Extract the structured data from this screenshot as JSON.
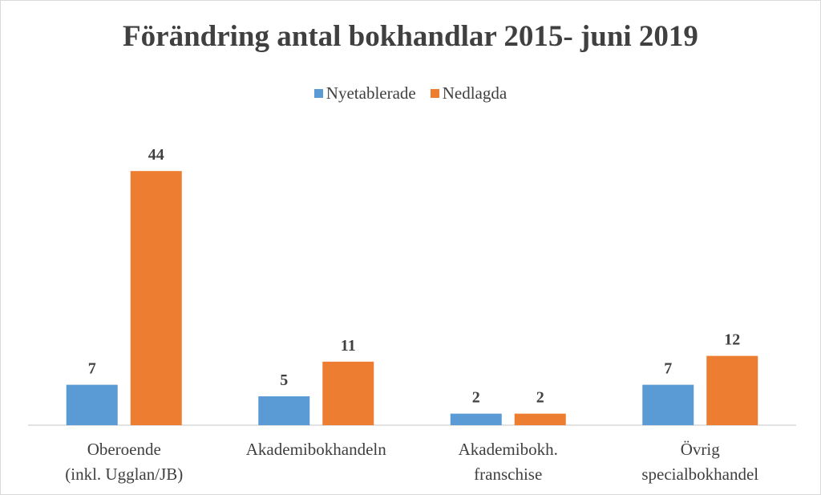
{
  "chart_data": {
    "type": "bar",
    "title": "Förändring antal bokhandlar 2015- juni 2019",
    "categories": [
      [
        "Oberoende",
        "(inkl. Ugglan/JB)"
      ],
      [
        "Akademibokhandeln"
      ],
      [
        "Akademibokh.",
        "franschise"
      ],
      [
        "Övrig",
        "specialbokhandel"
      ]
    ],
    "series": [
      {
        "name": "Nyetablerade",
        "color": "#5b9bd5",
        "values": [
          7,
          5,
          2,
          7
        ]
      },
      {
        "name": "Nedlagda",
        "color": "#ed7d31",
        "values": [
          44,
          11,
          2,
          12
        ]
      }
    ],
    "ylim": [
      0,
      50
    ],
    "grid": false,
    "legend_position": "top"
  }
}
